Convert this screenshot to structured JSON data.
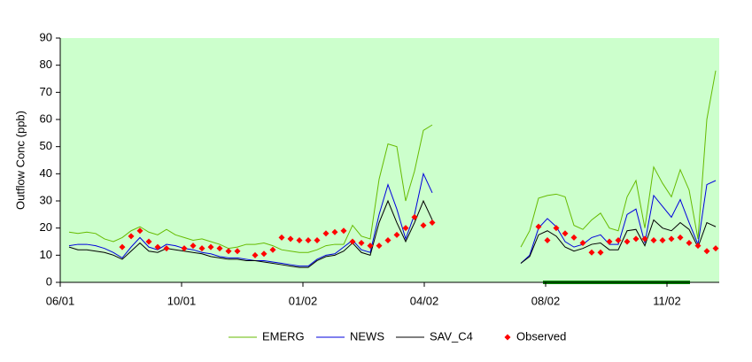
{
  "chart_data": {
    "type": "line",
    "y_label": "Outflow Conc (ppb)",
    "x": [
      1,
      2,
      3,
      4,
      5,
      6,
      7,
      8,
      9,
      10,
      11,
      12,
      13,
      14,
      15,
      16,
      17,
      18,
      19,
      20,
      21,
      22,
      23,
      24,
      25,
      26,
      27,
      28,
      29,
      30,
      31,
      32,
      33,
      34,
      35,
      36,
      37,
      38,
      39,
      40,
      41,
      42,
      43,
      44,
      45,
      46,
      47,
      48,
      49,
      50,
      51,
      52,
      53,
      54,
      55,
      56,
      57,
      58,
      59,
      60,
      61,
      62,
      63,
      64,
      65,
      66,
      67,
      68,
      69,
      70,
      71,
      72,
      73,
      74
    ],
    "xlim": [
      0,
      74.4
    ],
    "xticks": [
      {
        "value": 0,
        "label": "06/01"
      },
      {
        "value": 13.7,
        "label": "10/01"
      },
      {
        "value": 27.4,
        "label": "01/02"
      },
      {
        "value": 41.1,
        "label": "04/02"
      },
      {
        "value": 54.8,
        "label": "08/02"
      },
      {
        "value": 68.5,
        "label": "11/02"
      }
    ],
    "ylim": [
      0,
      90
    ],
    "yticks": [
      0,
      10,
      20,
      30,
      40,
      50,
      60,
      70,
      80,
      90
    ],
    "grid": false,
    "series": [
      {
        "name": "EMERG",
        "color": "#66bb00",
        "mode": "line",
        "values": [
          18.5,
          18,
          18.5,
          18,
          16,
          15,
          16.5,
          19,
          20.5,
          18.5,
          17.5,
          19.5,
          17.5,
          16.5,
          15.5,
          16,
          15,
          14,
          12.5,
          13,
          14,
          14,
          14.5,
          13.5,
          12,
          11.5,
          11,
          11,
          12,
          13.5,
          14,
          14,
          21,
          17,
          16,
          38,
          51,
          50,
          30,
          41,
          56,
          58,
          null,
          null,
          null,
          null,
          null,
          null,
          null,
          null,
          null,
          13,
          19,
          31,
          32,
          32.5,
          31.5,
          21,
          19.5,
          23,
          25.5,
          20,
          19,
          31.5,
          37.5,
          20,
          42.5,
          36.5,
          31.5,
          41.5,
          34,
          16,
          60,
          78
        ]
      },
      {
        "name": "NEWS",
        "color": "#0000dd",
        "mode": "line",
        "values": [
          13.5,
          14,
          14,
          13.5,
          12.5,
          11,
          9,
          13,
          16.5,
          13,
          12,
          14,
          13.5,
          12.5,
          12,
          11,
          10.5,
          9.5,
          9,
          9,
          8.5,
          8,
          8,
          7.5,
          7,
          6.5,
          6,
          6,
          8.5,
          10,
          10.5,
          13,
          15.5,
          12,
          11,
          25,
          36,
          27,
          16,
          25,
          40,
          33,
          null,
          null,
          null,
          null,
          null,
          null,
          null,
          null,
          null,
          7,
          10,
          20,
          23.5,
          20.5,
          15,
          13,
          14,
          16.5,
          17.5,
          14,
          14,
          25,
          27,
          14.5,
          32,
          28,
          24,
          30.5,
          22,
          14,
          36,
          37.5
        ]
      },
      {
        "name": "SAV_C4",
        "color": "#000000",
        "mode": "line",
        "values": [
          13,
          12,
          12,
          11.5,
          11,
          10,
          8.5,
          11.5,
          14.5,
          11.5,
          11,
          12.5,
          12,
          11.5,
          11,
          10.5,
          9.5,
          9,
          8.5,
          8.5,
          8,
          8,
          7.5,
          7,
          6.5,
          6,
          5.5,
          5.5,
          8,
          9.5,
          10,
          11.5,
          14.5,
          11,
          10,
          22,
          30,
          22,
          15,
          22,
          30,
          23,
          null,
          null,
          null,
          null,
          null,
          null,
          null,
          null,
          null,
          7,
          9.5,
          17.5,
          19,
          17,
          13,
          11.5,
          12.5,
          14,
          14.5,
          12,
          12,
          19,
          19.5,
          13.5,
          23,
          20,
          19,
          22,
          19.5,
          13,
          22,
          20.5
        ]
      },
      {
        "name": "Observed",
        "color": "#ff0000",
        "mode": "markers",
        "values": [
          null,
          null,
          null,
          null,
          null,
          null,
          13,
          17,
          19,
          15,
          13,
          12.5,
          null,
          12.5,
          13.5,
          12.5,
          13,
          12.5,
          11.5,
          11.5,
          null,
          10,
          10.5,
          12,
          16.5,
          16,
          15.5,
          15.5,
          15.5,
          18,
          18.5,
          19,
          15,
          14.5,
          13.5,
          13.5,
          15.5,
          17.5,
          20,
          24,
          21,
          22,
          null,
          null,
          null,
          null,
          null,
          null,
          null,
          null,
          null,
          null,
          null,
          20.5,
          15.5,
          20,
          18,
          16.5,
          14.5,
          11,
          11,
          15,
          15.5,
          15,
          16,
          16,
          15.5,
          15.5,
          16,
          16.5,
          14.5,
          13.5,
          11.5,
          12.5
        ]
      }
    ]
  }
}
